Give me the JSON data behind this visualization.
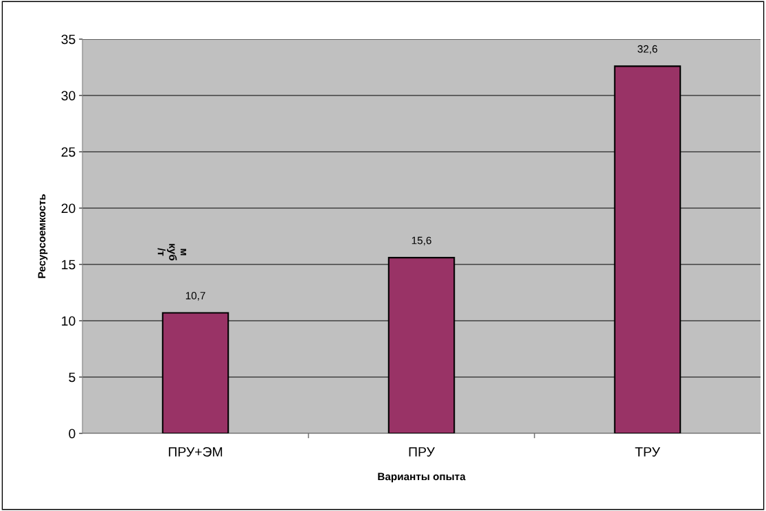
{
  "chart_data": {
    "type": "bar",
    "xlabel": "Варианты опыта",
    "ylabel": "Ресурсоемкость",
    "categories": [
      "ПРУ+ЭМ",
      "ПРУ",
      "ТРУ"
    ],
    "values": [
      10.7,
      15.6,
      32.6
    ],
    "value_labels": [
      "10,7",
      "15,6",
      "32,6"
    ],
    "color": "#993366",
    "ylim": [
      0,
      35
    ],
    "yticks": [
      0,
      5,
      10,
      15,
      20,
      25,
      30,
      35
    ],
    "grid": "y",
    "annotations": [
      "м\nкуб\n/т"
    ]
  }
}
